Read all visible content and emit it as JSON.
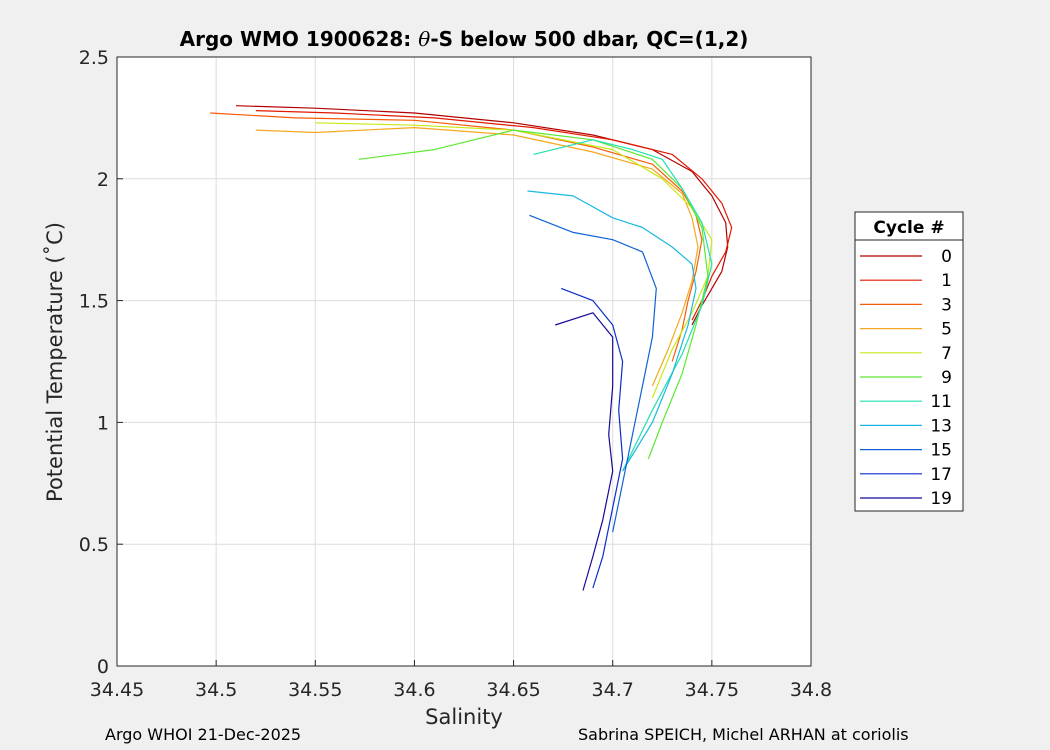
{
  "chart_data": {
    "type": "line",
    "title_prefix": "Argo WMO 1900628: ",
    "title_theta": "θ",
    "title_suffix": "-S below 500 dbar,  QC=(1,2)",
    "xlabel": "Salinity",
    "ylabel": "Potential Temperature (˚C)",
    "xlim": [
      34.45,
      34.8
    ],
    "ylim": [
      0,
      2.5
    ],
    "xticks": [
      "34.45",
      "34.5",
      "34.55",
      "34.6",
      "34.65",
      "34.7",
      "34.75",
      "34.8"
    ],
    "yticks": [
      "0",
      "0.5",
      "1",
      "1.5",
      "2",
      "2.5"
    ],
    "grid": true,
    "legend_title": "Cycle #",
    "legend_position": "right",
    "series": [
      {
        "name": "0",
        "color": "#b30000",
        "x": [
          34.51,
          34.55,
          34.6,
          34.65,
          34.69,
          34.72,
          34.74,
          34.75,
          34.757,
          34.758,
          34.755,
          34.75,
          34.745,
          34.74
        ],
        "y": [
          2.3,
          2.29,
          2.27,
          2.23,
          2.18,
          2.12,
          2.03,
          1.93,
          1.82,
          1.72,
          1.62,
          1.55,
          1.48,
          1.4
        ]
      },
      {
        "name": "1",
        "color": "#e01a00",
        "x": [
          34.52,
          34.56,
          34.61,
          34.66,
          34.7,
          34.73,
          34.745,
          34.755,
          34.76,
          34.757,
          34.75,
          34.745,
          34.74
        ],
        "y": [
          2.28,
          2.27,
          2.25,
          2.21,
          2.16,
          2.1,
          2.0,
          1.9,
          1.8,
          1.7,
          1.6,
          1.5,
          1.42
        ]
      },
      {
        "name": "3",
        "color": "#f55c0a",
        "x": [
          34.497,
          34.54,
          34.6,
          34.65,
          34.69,
          34.72,
          34.735,
          34.742,
          34.745,
          34.742,
          34.738,
          34.735,
          34.73
        ],
        "y": [
          2.27,
          2.25,
          2.24,
          2.2,
          2.13,
          2.06,
          1.95,
          1.85,
          1.75,
          1.62,
          1.5,
          1.38,
          1.25
        ]
      },
      {
        "name": "5",
        "color": "#f5a81f",
        "x": [
          34.52,
          34.55,
          34.6,
          34.65,
          34.69,
          34.72,
          34.735,
          34.74,
          34.743,
          34.74,
          34.735,
          34.728,
          34.72
        ],
        "y": [
          2.2,
          2.19,
          2.21,
          2.18,
          2.11,
          2.04,
          1.94,
          1.84,
          1.72,
          1.58,
          1.45,
          1.3,
          1.15
        ]
      },
      {
        "name": "7",
        "color": "#c9e81a",
        "x": [
          34.55,
          34.6,
          34.65,
          34.7,
          34.725,
          34.74,
          34.75,
          34.748,
          34.74,
          34.73,
          34.72
        ],
        "y": [
          2.23,
          2.22,
          2.2,
          2.12,
          2.0,
          1.88,
          1.75,
          1.6,
          1.45,
          1.3,
          1.1
        ]
      },
      {
        "name": "9",
        "color": "#5ce830",
        "x": [
          34.572,
          34.61,
          34.65,
          34.69,
          34.72,
          34.735,
          34.745,
          34.748,
          34.742,
          34.735,
          34.725,
          34.718
        ],
        "y": [
          2.08,
          2.12,
          2.2,
          2.16,
          2.08,
          1.96,
          1.8,
          1.6,
          1.4,
          1.2,
          1.0,
          0.85
        ]
      },
      {
        "name": "11",
        "color": "#20e0b0",
        "x": [
          34.66,
          34.69,
          34.71,
          34.725,
          34.735,
          34.745,
          34.75,
          34.745,
          34.735,
          34.72,
          34.705
        ],
        "y": [
          2.1,
          2.16,
          2.12,
          2.08,
          1.96,
          1.82,
          1.65,
          1.48,
          1.28,
          1.05,
          0.8
        ]
      },
      {
        "name": "13",
        "color": "#1ab8e0",
        "x": [
          34.657,
          34.68,
          34.7,
          34.715,
          34.73,
          34.74,
          34.742,
          34.738,
          34.73,
          34.72,
          34.705
        ],
        "y": [
          1.95,
          1.93,
          1.84,
          1.8,
          1.72,
          1.65,
          1.55,
          1.4,
          1.2,
          1.0,
          0.8
        ]
      },
      {
        "name": "15",
        "color": "#0f63d6",
        "x": [
          34.658,
          34.68,
          34.7,
          34.715,
          34.722,
          34.72,
          34.715,
          34.71,
          34.705,
          34.7
        ],
        "y": [
          1.85,
          1.78,
          1.75,
          1.7,
          1.55,
          1.35,
          1.15,
          0.95,
          0.75,
          0.55
        ]
      },
      {
        "name": "17",
        "color": "#0a2ccc",
        "x": [
          34.674,
          34.69,
          34.7,
          34.705,
          34.703,
          34.705,
          34.7,
          34.695,
          34.69
        ],
        "y": [
          1.55,
          1.5,
          1.4,
          1.25,
          1.05,
          0.85,
          0.65,
          0.45,
          0.32
        ]
      },
      {
        "name": "19",
        "color": "#140a99",
        "x": [
          34.671,
          34.69,
          34.7,
          34.7,
          34.698,
          34.7,
          34.695,
          34.69,
          34.685
        ],
        "y": [
          1.4,
          1.45,
          1.35,
          1.15,
          0.95,
          0.8,
          0.6,
          0.45,
          0.31
        ]
      }
    ]
  },
  "footer": {
    "left": "Argo WHOI 21-Dec-2025",
    "right": "Sabrina SPEICH, Michel ARHAN at coriolis"
  }
}
